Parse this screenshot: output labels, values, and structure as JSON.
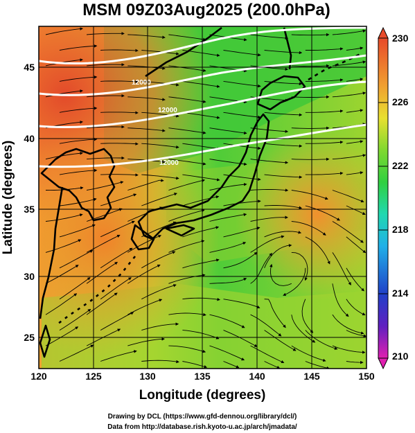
{
  "title": "MSM 09Z03Aug2025 (200.0hPa)",
  "xlabel": "Longitude (degrees)",
  "ylabel": "Latitude  (degrees)",
  "x_ticks": [
    "120",
    "125",
    "130",
    "135",
    "140",
    "145",
    "150"
  ],
  "y_ticks": [
    "25",
    "30",
    "35",
    "40",
    "45"
  ],
  "colorbar": {
    "ticks": [
      "230",
      "226",
      "222",
      "218",
      "214",
      "210"
    ],
    "min": 210,
    "max": 230
  },
  "credits": {
    "line1": "Drawing by DCL (https://www.gfd-dennou.org/library/dcl/)",
    "line2": "Data from http://database.rish.kyoto-u.ac.jp/arch/jmadata/"
  },
  "contour_labels": {
    "c1": "12000",
    "c2": "12000",
    "c3": "12000"
  },
  "colors": {
    "warm": "#e8502a",
    "mid": "#f0a83a",
    "green": "#3cc83a",
    "blue": "#2850c8",
    "magenta": "#d020c8"
  }
}
